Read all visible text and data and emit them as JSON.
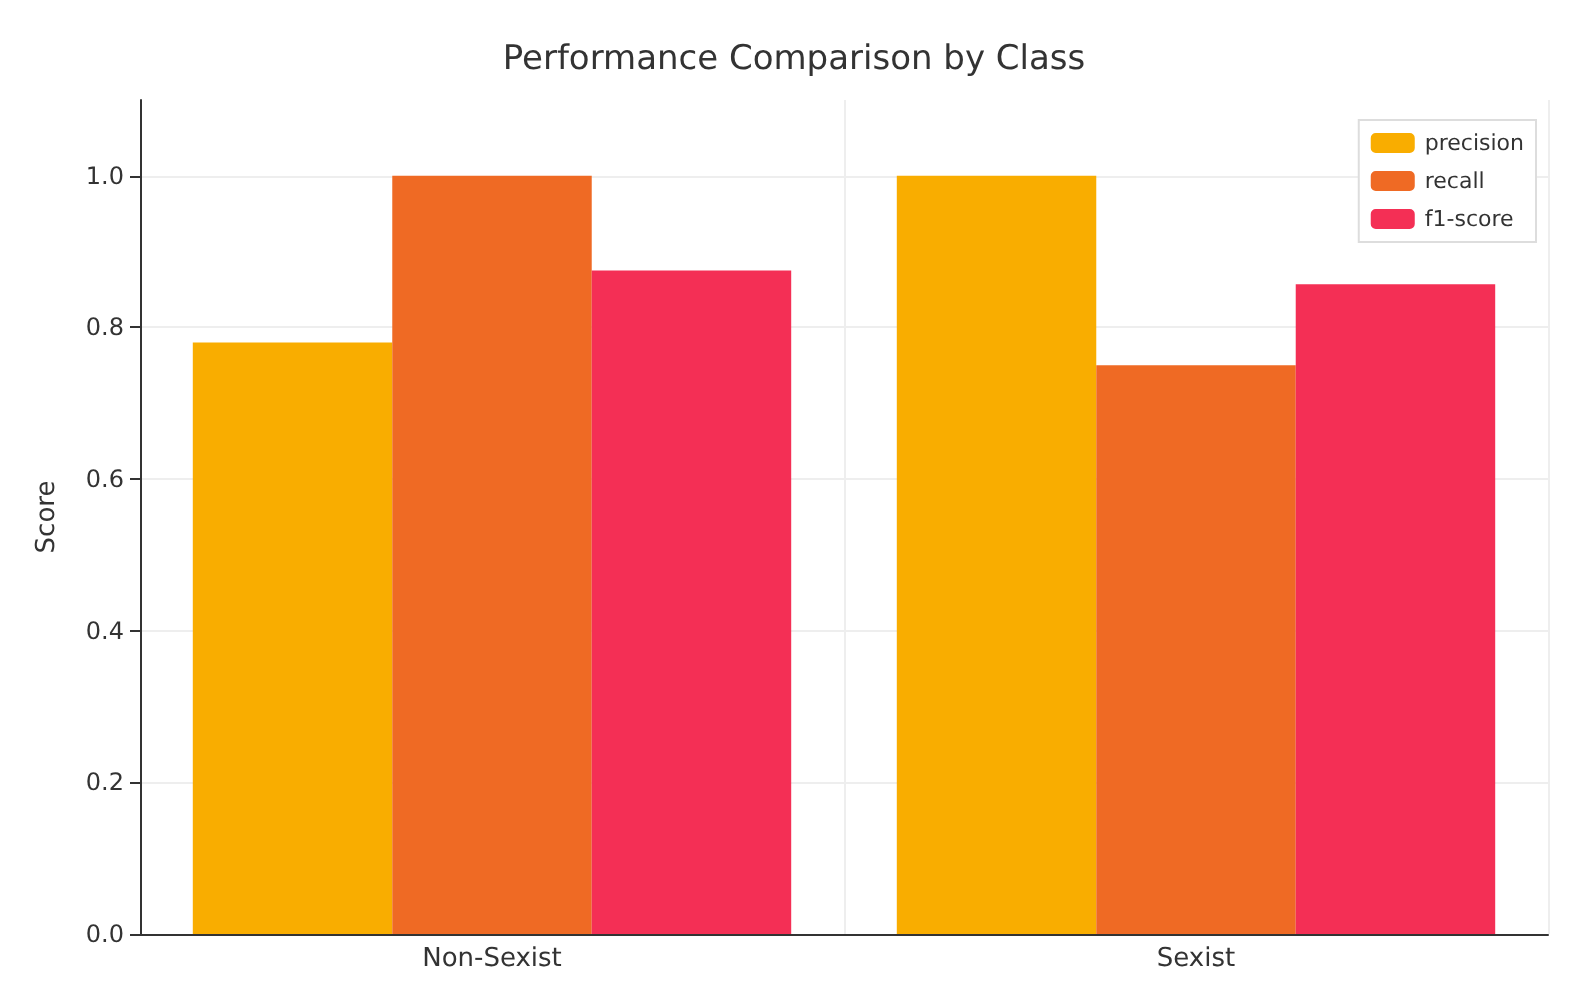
{
  "chart_data": {
    "type": "bar",
    "title": "Performance Comparison by Class",
    "ylabel": "Score",
    "categories": [
      "Non-Sexist",
      "Sexist"
    ],
    "series": [
      {
        "name": "precision",
        "color": "#f9ad00",
        "values": [
          0.78,
          1.0
        ]
      },
      {
        "name": "recall",
        "color": "#ef6a24",
        "values": [
          1.0,
          0.75
        ]
      },
      {
        "name": "f1-score",
        "color": "#f42f55",
        "values": [
          0.875,
          0.857
        ]
      }
    ],
    "ylim": [
      0,
      1.1
    ],
    "yticks": [
      {
        "value": 0,
        "label": "0.0"
      },
      0.2,
      0.4,
      0.6,
      0.8,
      {
        "value": 1,
        "label": "1.0"
      }
    ],
    "grid": true,
    "legend": "top right"
  }
}
